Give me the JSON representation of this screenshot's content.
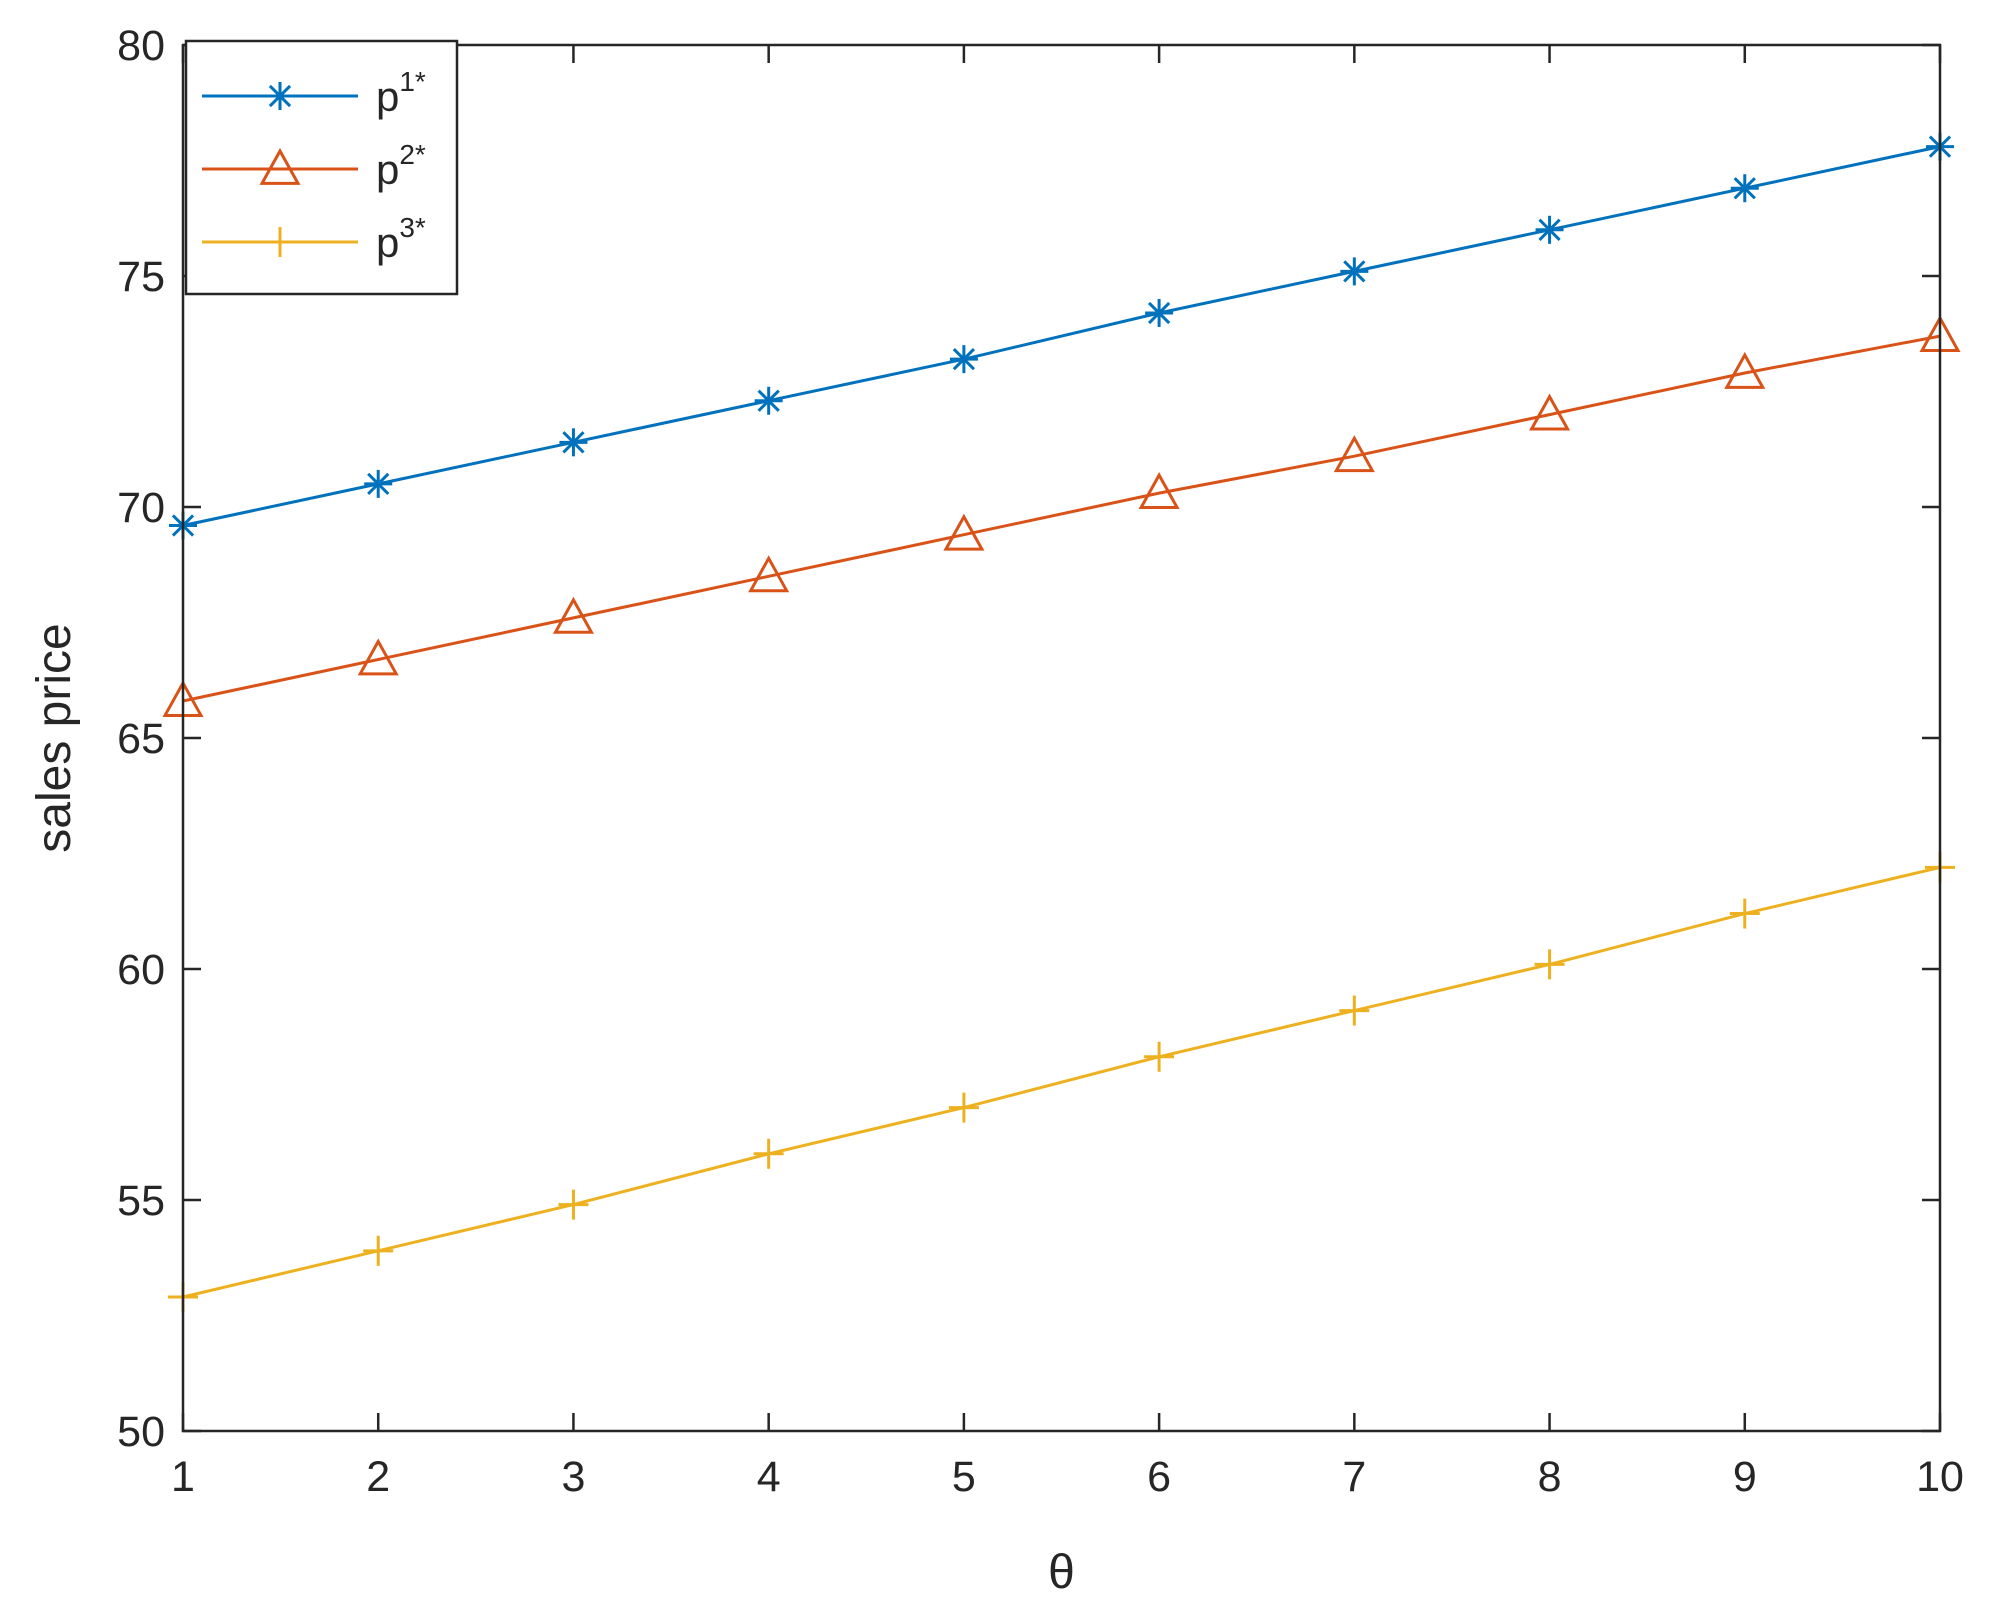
{
  "chart_data": {
    "type": "line",
    "xlabel": "θ",
    "ylabel": "sales price",
    "xlim": [
      1,
      10
    ],
    "ylim": [
      50,
      80
    ],
    "x_ticks": [
      1,
      2,
      3,
      4,
      5,
      6,
      7,
      8,
      9,
      10
    ],
    "y_ticks": [
      50,
      55,
      60,
      65,
      70,
      75,
      80
    ],
    "grid": false,
    "legend_position": "top-left",
    "x": [
      1,
      2,
      3,
      4,
      5,
      6,
      7,
      8,
      9,
      10
    ],
    "series": [
      {
        "name": "p1*",
        "label_base": "p",
        "label_sup": "1*",
        "color": "#0072BD",
        "marker": "asterisk",
        "values": [
          69.6,
          70.5,
          71.4,
          72.3,
          73.2,
          74.2,
          75.1,
          76.0,
          76.9,
          77.8
        ]
      },
      {
        "name": "p2*",
        "label_base": "p",
        "label_sup": "2*",
        "color": "#D95319",
        "marker": "triangle",
        "values": [
          65.8,
          66.7,
          67.6,
          68.5,
          69.4,
          70.3,
          71.1,
          72.0,
          72.9,
          73.7
        ]
      },
      {
        "name": "p3*",
        "label_base": "p",
        "label_sup": "3*",
        "color": "#EDB120",
        "marker": "plus",
        "values": [
          52.9,
          53.9,
          54.9,
          56.0,
          57.0,
          58.1,
          59.1,
          60.1,
          61.2,
          62.2
        ]
      }
    ]
  }
}
